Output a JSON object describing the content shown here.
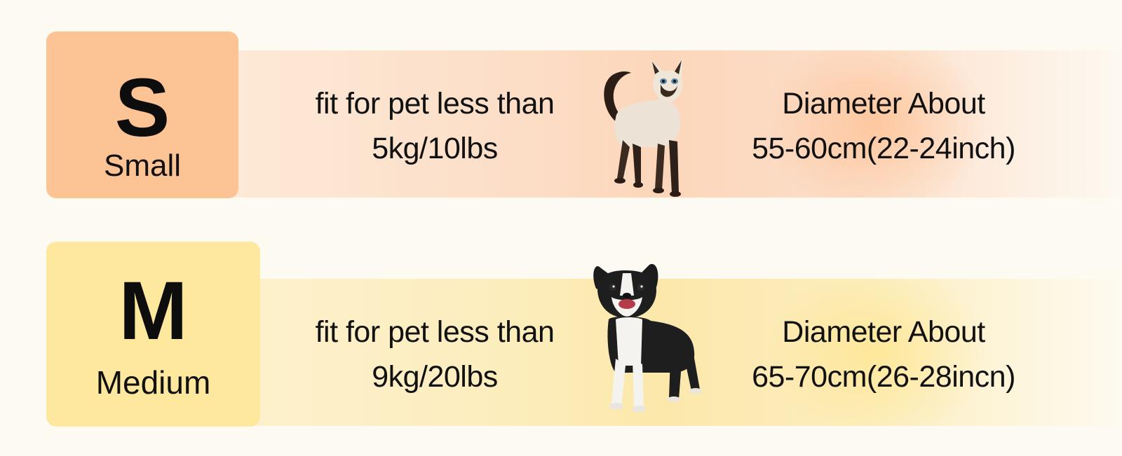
{
  "sizes": {
    "small": {
      "letter": "S",
      "name": "Small",
      "fit_line1": "fit for pet less than",
      "fit_line2": "5kg/10lbs",
      "diameter_line1": "Diameter About",
      "diameter_line2": "55-60cm(22-24inch)",
      "pet_image": "siamese-cat",
      "colors": {
        "box": "#fcc394",
        "band": "#fcd6ba"
      }
    },
    "medium": {
      "letter": "M",
      "name": "Medium",
      "fit_line1": "fit for pet less than",
      "fit_line2": "9kg/20lbs",
      "diameter_line1": "Diameter About",
      "diameter_line2": "65-70cm(26-28incn)",
      "pet_image": "boston-terrier-dog",
      "colors": {
        "box": "#fde89e",
        "band": "#fce8aa"
      }
    }
  },
  "background_color": "#fdfaf2"
}
